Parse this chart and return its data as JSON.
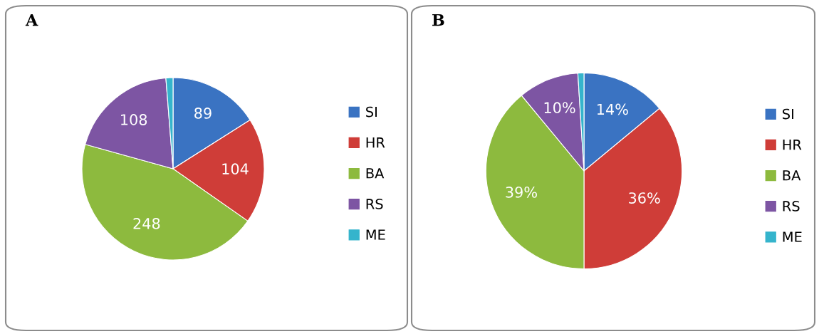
{
  "chart_data": [
    {
      "type": "pie",
      "title": "A",
      "categories": [
        "SI",
        "HR",
        "BA",
        "RS",
        "ME"
      ],
      "values": [
        89,
        104,
        248,
        108,
        7
      ],
      "colors": [
        "#3a73c2",
        "#cf3d38",
        "#8dba3e",
        "#7d55a3",
        "#35b4cc"
      ],
      "value_labels": [
        "89",
        "104",
        "248",
        "108",
        null
      ],
      "legend": "right"
    },
    {
      "type": "pie",
      "title": "B",
      "categories": [
        "SI",
        "HR",
        "BA",
        "RS",
        "ME"
      ],
      "values": [
        14,
        36,
        39,
        10,
        1
      ],
      "colors": [
        "#3a73c2",
        "#cf3d38",
        "#8dba3e",
        "#7d55a3",
        "#35b4cc"
      ],
      "value_labels": [
        "14%",
        "36%",
        "39%",
        "10%",
        null
      ],
      "legend": "right"
    }
  ]
}
